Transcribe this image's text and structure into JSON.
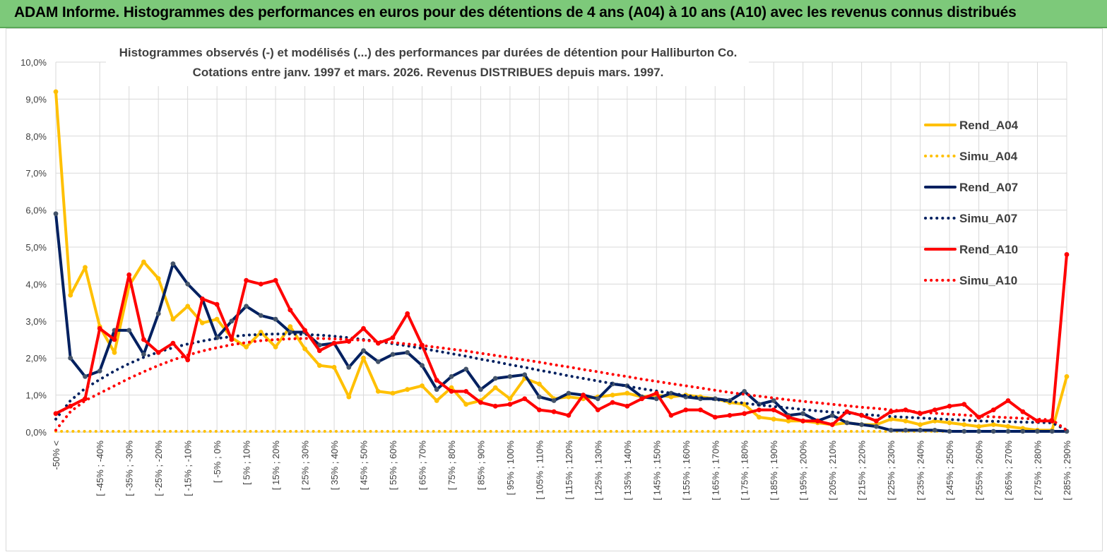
{
  "banner": {
    "title": "ADAM Informe. Histogrammes des performances en euros pour des détentions de 4 ans (A04) à 10 ans (A10) avec les revenus connus distribués"
  },
  "chart_data": {
    "type": "line",
    "title_line1": "Histogrammes observés (-) et modélisés (...)  des performances par durées de détention pour Halliburton Co.",
    "title_line2": "Cotations entre janv. 1997 et mars. 2026.  Revenus DISTRIBUES depuis mars. 1997.",
    "ylim": [
      0,
      10
    ],
    "yticks": [
      "0,0%",
      "1,0%",
      "2,0%",
      "3,0%",
      "4,0%",
      "5,0%",
      "6,0%",
      "7,0%",
      "8,0%",
      "9,0%",
      "10,0%"
    ],
    "xtick_labels": [
      "-50% <",
      "[ -45% ; -40%",
      "[ -35% ; -30%",
      "[ -25% ; -20%",
      "[ -15% ; -10%",
      "[ -5% ; 0%",
      "[ 5% ; 10%",
      "[ 15% ; 20%",
      "[ 25% ; 30%",
      "[ 35% ; 40%",
      "[ 45% ; 50%",
      "[ 55% ; 60%",
      "[ 65% ; 70%",
      "[ 75% ; 80%",
      "[ 85% ; 90%",
      "[ 95% ; 100%",
      "[ 105% ; 110%",
      "[ 115% ; 120%",
      "[ 125% ; 130%",
      "[ 135% ; 140%",
      "[ 145% ; 150%",
      "[ 155% ; 160%",
      "[ 165% ; 170%",
      "[ 175% ; 180%",
      "[ 185% ; 190%",
      "[ 195% ; 200%",
      "[ 205% ; 210%",
      "[ 215% ; 220%",
      "[ 225% ; 230%",
      "[ 235% ; 240%",
      "[ 245% ; 250%",
      "[ 255% ; 260%",
      "[ 265% ; 270%",
      "[ 275% ; 280%",
      "[ 285% ; 290%"
    ],
    "n_categories": 70,
    "series": [
      {
        "name": "Rend_A04",
        "style": "solid",
        "color": "#FFC000",
        "values": [
          9.2,
          3.7,
          4.45,
          2.85,
          2.15,
          3.95,
          4.6,
          4.15,
          3.05,
          3.4,
          2.95,
          3.05,
          2.55,
          2.3,
          2.7,
          2.3,
          2.85,
          2.25,
          1.8,
          1.75,
          0.95,
          2.0,
          1.1,
          1.05,
          1.15,
          1.25,
          0.85,
          1.2,
          0.75,
          0.85,
          1.2,
          0.9,
          1.45,
          1.3,
          0.9,
          0.95,
          0.9,
          0.95,
          1.0,
          1.05,
          0.95,
          1.0,
          0.95,
          1.0,
          0.95,
          0.9,
          0.8,
          0.75,
          0.4,
          0.35,
          0.3,
          0.3,
          0.25,
          0.2,
          0.25,
          0.2,
          0.2,
          0.35,
          0.3,
          0.2,
          0.3,
          0.25,
          0.2,
          0.15,
          0.2,
          0.15,
          0.1,
          0.05,
          0.05,
          1.5
        ]
      },
      {
        "name": "Simu_A04",
        "style": "dotted",
        "color": "#FFC000",
        "values": [
          0.02,
          0.02,
          0.02,
          0.02,
          0.02,
          0.02,
          0.02,
          0.02,
          0.02,
          0.02,
          0.02,
          0.02,
          0.02,
          0.02,
          0.02,
          0.02,
          0.02,
          0.02,
          0.02,
          0.02,
          0.02,
          0.02,
          0.02,
          0.02,
          0.02,
          0.02,
          0.02,
          0.02,
          0.02,
          0.02,
          0.02,
          0.02,
          0.02,
          0.02,
          0.02,
          0.02,
          0.02,
          0.02,
          0.02,
          0.02,
          0.02,
          0.02,
          0.02,
          0.02,
          0.02,
          0.02,
          0.02,
          0.02,
          0.02,
          0.02,
          0.02,
          0.02,
          0.02,
          0.02,
          0.02,
          0.02,
          0.02,
          0.02,
          0.02,
          0.02,
          0.02,
          0.02,
          0.02,
          0.02,
          0.02,
          0.02,
          0.02,
          0.02,
          0.02,
          0.02
        ]
      },
      {
        "name": "Rend_A07",
        "style": "solid",
        "color": "#002060",
        "values": [
          5.9,
          2.0,
          1.5,
          1.65,
          2.75,
          2.75,
          2.1,
          3.2,
          4.55,
          4.0,
          3.6,
          2.55,
          3.0,
          3.4,
          3.15,
          3.05,
          2.7,
          2.7,
          2.35,
          2.4,
          1.75,
          2.2,
          1.9,
          2.1,
          2.15,
          1.8,
          1.15,
          1.5,
          1.7,
          1.15,
          1.45,
          1.5,
          1.55,
          0.95,
          0.85,
          1.05,
          1.0,
          0.9,
          1.3,
          1.25,
          0.95,
          0.9,
          1.05,
          0.95,
          0.9,
          0.9,
          0.85,
          1.1,
          0.75,
          0.85,
          0.45,
          0.5,
          0.3,
          0.45,
          0.25,
          0.2,
          0.15,
          0.05,
          0.05,
          0.05,
          0.05,
          0.02,
          0.02,
          0.02,
          0.02,
          0.02,
          0.02,
          0.02,
          0.02,
          0.02
        ]
      },
      {
        "name": "Simu_A07",
        "style": "dotted",
        "color": "#002060",
        "values": [
          0.35,
          0.85,
          1.18,
          1.42,
          1.65,
          1.85,
          2.02,
          2.16,
          2.28,
          2.38,
          2.46,
          2.53,
          2.58,
          2.62,
          2.64,
          2.65,
          2.65,
          2.64,
          2.62,
          2.59,
          2.55,
          2.5,
          2.45,
          2.39,
          2.33,
          2.26,
          2.19,
          2.12,
          2.05,
          1.97,
          1.9,
          1.82,
          1.75,
          1.67,
          1.6,
          1.52,
          1.45,
          1.38,
          1.31,
          1.24,
          1.17,
          1.11,
          1.05,
          0.99,
          0.93,
          0.88,
          0.83,
          0.78,
          0.73,
          0.69,
          0.65,
          0.61,
          0.57,
          0.54,
          0.51,
          0.48,
          0.45,
          0.42,
          0.4,
          0.38,
          0.36,
          0.34,
          0.32,
          0.3,
          0.29,
          0.28,
          0.27,
          0.26,
          0.25,
          0.05
        ]
      },
      {
        "name": "Rend_A10",
        "style": "solid",
        "color": "#FF0000",
        "values": [
          0.5,
          0.7,
          0.9,
          2.8,
          2.5,
          4.25,
          2.5,
          2.15,
          2.4,
          1.95,
          3.6,
          3.45,
          2.5,
          4.1,
          4.0,
          4.1,
          3.3,
          2.75,
          2.2,
          2.4,
          2.45,
          2.8,
          2.4,
          2.55,
          3.2,
          2.35,
          1.4,
          1.1,
          1.1,
          0.8,
          0.7,
          0.75,
          0.9,
          0.6,
          0.55,
          0.45,
          1.0,
          0.6,
          0.8,
          0.7,
          0.9,
          1.05,
          0.45,
          0.6,
          0.6,
          0.4,
          0.45,
          0.5,
          0.6,
          0.6,
          0.4,
          0.3,
          0.3,
          0.2,
          0.55,
          0.45,
          0.3,
          0.55,
          0.6,
          0.5,
          0.6,
          0.7,
          0.75,
          0.4,
          0.6,
          0.85,
          0.55,
          0.3,
          0.3,
          4.8
        ]
      },
      {
        "name": "Simu_A10",
        "style": "dotted",
        "color": "#FF0000",
        "values": [
          0.05,
          0.55,
          0.85,
          1.05,
          1.25,
          1.45,
          1.63,
          1.8,
          1.95,
          2.08,
          2.19,
          2.28,
          2.36,
          2.42,
          2.47,
          2.5,
          2.52,
          2.53,
          2.53,
          2.52,
          2.5,
          2.48,
          2.45,
          2.42,
          2.38,
          2.34,
          2.29,
          2.24,
          2.19,
          2.13,
          2.07,
          2.01,
          1.95,
          1.89,
          1.82,
          1.76,
          1.69,
          1.63,
          1.56,
          1.5,
          1.43,
          1.37,
          1.31,
          1.25,
          1.19,
          1.13,
          1.07,
          1.02,
          0.97,
          0.92,
          0.87,
          0.83,
          0.79,
          0.75,
          0.71,
          0.67,
          0.64,
          0.6,
          0.57,
          0.54,
          0.51,
          0.48,
          0.46,
          0.43,
          0.41,
          0.39,
          0.37,
          0.35,
          0.33,
          0.05
        ]
      }
    ],
    "legend": [
      "Rend_A04",
      "Simu_A04",
      "Rend_A07",
      "Simu_A07",
      "Rend_A10",
      "Simu_A10"
    ]
  }
}
